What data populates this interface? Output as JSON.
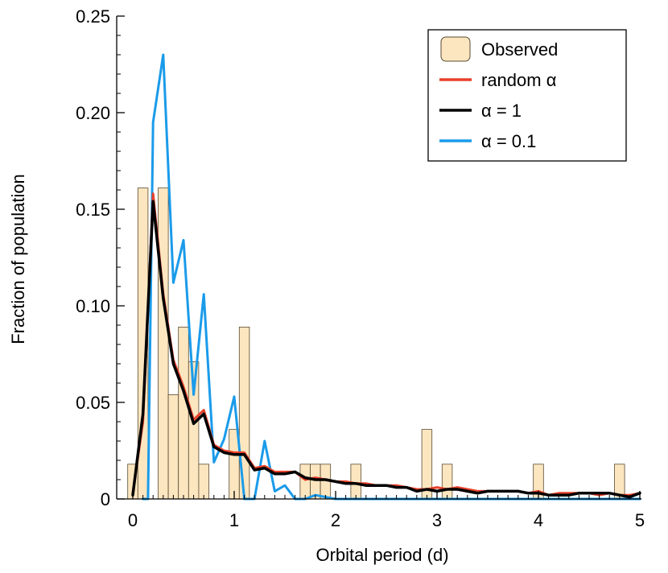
{
  "chart_data": {
    "type": "bar",
    "xlabel": "Orbital period (d)",
    "ylabel": "Fraction of population",
    "xlim": [
      0,
      5
    ],
    "ylim": [
      0,
      0.25
    ],
    "x_ticks": [
      0,
      1,
      2,
      3,
      4,
      5
    ],
    "x_tick_labels": [
      "0",
      "1",
      "2",
      "3",
      "4",
      "5"
    ],
    "y_ticks": [
      0,
      0.05,
      0.1,
      0.15,
      0.2,
      0.25
    ],
    "y_tick_labels": [
      "0",
      "0.05",
      "0.10",
      "0.15",
      "0.20",
      "0.25"
    ],
    "grid": false,
    "legend_position": "top-right",
    "histogram": {
      "name": "Observed",
      "bin_width": 0.1,
      "color": "#fbe6c0",
      "edge": "#5a4a30",
      "bins": [
        [
          -0.05,
          0.018
        ],
        [
          0.05,
          0.161
        ],
        [
          0.25,
          0.161
        ],
        [
          0.35,
          0.054
        ],
        [
          0.45,
          0.089
        ],
        [
          0.55,
          0.071
        ],
        [
          0.65,
          0.018
        ],
        [
          0.95,
          0.036
        ],
        [
          1.05,
          0.089
        ],
        [
          1.65,
          0.018
        ],
        [
          1.75,
          0.018
        ],
        [
          1.85,
          0.018
        ],
        [
          2.15,
          0.018
        ],
        [
          2.85,
          0.036
        ],
        [
          3.05,
          0.018
        ],
        [
          3.95,
          0.018
        ],
        [
          4.75,
          0.018
        ]
      ]
    },
    "series": [
      {
        "name": "random α",
        "color": "#e8402a",
        "width": 3,
        "points": [
          [
            0.0,
            0.003
          ],
          [
            0.1,
            0.04
          ],
          [
            0.2,
            0.158
          ],
          [
            0.3,
            0.106
          ],
          [
            0.4,
            0.072
          ],
          [
            0.5,
            0.058
          ],
          [
            0.6,
            0.041
          ],
          [
            0.7,
            0.046
          ],
          [
            0.8,
            0.028
          ],
          [
            0.9,
            0.025
          ],
          [
            1.0,
            0.024
          ],
          [
            1.1,
            0.024
          ],
          [
            1.2,
            0.016
          ],
          [
            1.3,
            0.017
          ],
          [
            1.4,
            0.014
          ],
          [
            1.5,
            0.014
          ],
          [
            1.6,
            0.014
          ],
          [
            1.7,
            0.01
          ],
          [
            1.8,
            0.011
          ],
          [
            1.9,
            0.01
          ],
          [
            2.0,
            0.009
          ],
          [
            2.1,
            0.009
          ],
          [
            2.2,
            0.008
          ],
          [
            2.3,
            0.008
          ],
          [
            2.4,
            0.007
          ],
          [
            2.5,
            0.007
          ],
          [
            2.6,
            0.007
          ],
          [
            2.7,
            0.006
          ],
          [
            2.8,
            0.005
          ],
          [
            2.9,
            0.005
          ],
          [
            3.0,
            0.006
          ],
          [
            3.1,
            0.005
          ],
          [
            3.2,
            0.006
          ],
          [
            3.3,
            0.005
          ],
          [
            3.4,
            0.004
          ],
          [
            3.5,
            0.004
          ],
          [
            3.6,
            0.004
          ],
          [
            3.7,
            0.004
          ],
          [
            3.8,
            0.004
          ],
          [
            3.9,
            0.003
          ],
          [
            4.0,
            0.004
          ],
          [
            4.1,
            0.002
          ],
          [
            4.2,
            0.003
          ],
          [
            4.3,
            0.003
          ],
          [
            4.4,
            0.003
          ],
          [
            4.5,
            0.003
          ],
          [
            4.6,
            0.002
          ],
          [
            4.7,
            0.003
          ],
          [
            4.8,
            0.002
          ],
          [
            4.9,
            0.002
          ],
          [
            5.0,
            0.003
          ]
        ]
      },
      {
        "name": "α = 1",
        "color": "#000000",
        "width": 3.5,
        "points": [
          [
            0.0,
            0.002
          ],
          [
            0.1,
            0.044
          ],
          [
            0.2,
            0.154
          ],
          [
            0.3,
            0.104
          ],
          [
            0.4,
            0.07
          ],
          [
            0.5,
            0.056
          ],
          [
            0.6,
            0.039
          ],
          [
            0.7,
            0.044
          ],
          [
            0.8,
            0.027
          ],
          [
            0.9,
            0.024
          ],
          [
            1.0,
            0.023
          ],
          [
            1.1,
            0.023
          ],
          [
            1.2,
            0.015
          ],
          [
            1.3,
            0.016
          ],
          [
            1.4,
            0.013
          ],
          [
            1.5,
            0.013
          ],
          [
            1.6,
            0.014
          ],
          [
            1.7,
            0.011
          ],
          [
            1.8,
            0.01
          ],
          [
            1.9,
            0.01
          ],
          [
            2.0,
            0.009
          ],
          [
            2.1,
            0.008
          ],
          [
            2.2,
            0.008
          ],
          [
            2.3,
            0.007
          ],
          [
            2.4,
            0.007
          ],
          [
            2.5,
            0.007
          ],
          [
            2.6,
            0.006
          ],
          [
            2.7,
            0.006
          ],
          [
            2.8,
            0.004
          ],
          [
            2.9,
            0.005
          ],
          [
            3.0,
            0.004
          ],
          [
            3.1,
            0.005
          ],
          [
            3.2,
            0.005
          ],
          [
            3.3,
            0.004
          ],
          [
            3.4,
            0.003
          ],
          [
            3.5,
            0.004
          ],
          [
            3.6,
            0.004
          ],
          [
            3.7,
            0.004
          ],
          [
            3.8,
            0.004
          ],
          [
            3.9,
            0.003
          ],
          [
            4.0,
            0.003
          ],
          [
            4.1,
            0.002
          ],
          [
            4.2,
            0.002
          ],
          [
            4.3,
            0.002
          ],
          [
            4.4,
            0.003
          ],
          [
            4.5,
            0.003
          ],
          [
            4.6,
            0.003
          ],
          [
            4.7,
            0.003
          ],
          [
            4.8,
            0.002
          ],
          [
            4.9,
            0.001
          ],
          [
            5.0,
            0.003
          ]
        ]
      },
      {
        "name": "α = 0.1",
        "color": "#1a9bea",
        "width": 3,
        "points": [
          [
            0.1,
            0.0
          ],
          [
            0.15,
            0.0
          ],
          [
            0.2,
            0.195
          ],
          [
            0.3,
            0.23
          ],
          [
            0.4,
            0.112
          ],
          [
            0.5,
            0.134
          ],
          [
            0.6,
            0.054
          ],
          [
            0.7,
            0.106
          ],
          [
            0.8,
            0.019
          ],
          [
            0.9,
            0.031
          ],
          [
            1.0,
            0.053
          ],
          [
            1.1,
            0.0
          ],
          [
            1.2,
            0.0
          ],
          [
            1.3,
            0.03
          ],
          [
            1.4,
            0.004
          ],
          [
            1.5,
            0.007
          ],
          [
            1.6,
            0.0
          ],
          [
            1.7,
            0.0
          ],
          [
            1.8,
            0.002
          ],
          [
            1.9,
            0.001
          ],
          [
            2.0,
            0.0
          ],
          [
            5.0,
            0.0
          ]
        ]
      }
    ],
    "legend": [
      {
        "label": "Observed",
        "kind": "patch",
        "color": "#fbe6c0"
      },
      {
        "label": "random α",
        "kind": "line",
        "color": "#e8402a"
      },
      {
        "label": "α = 1",
        "kind": "line",
        "color": "#000000"
      },
      {
        "label": "α = 0.1",
        "kind": "line",
        "color": "#1a9bea"
      }
    ]
  }
}
